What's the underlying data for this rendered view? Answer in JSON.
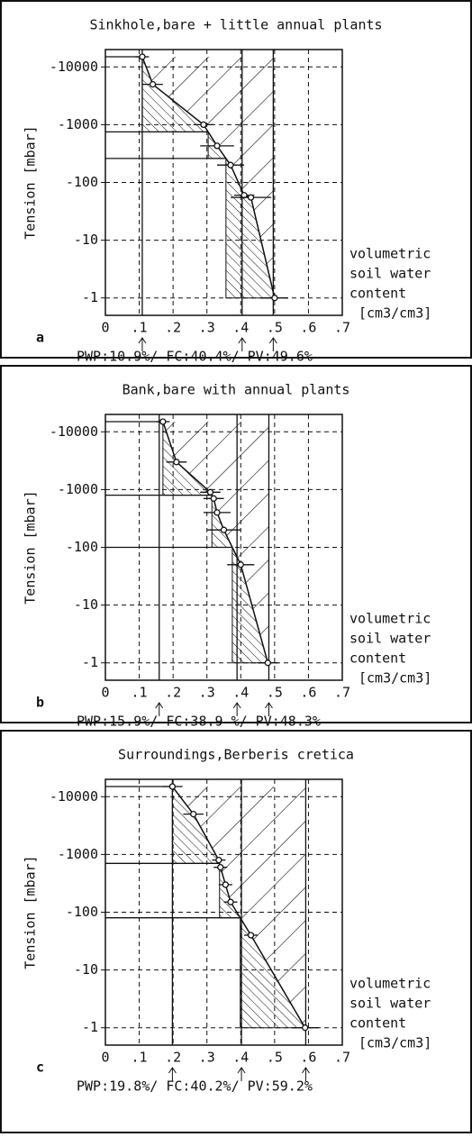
{
  "chart_data": [
    {
      "type": "scatter",
      "title": "Sinkhole,bare + little annual plants",
      "ylabel": "Tension [mbar]",
      "xlabel": [
        "volumetric",
        "soil water",
        "content",
        "[cm3/cm3]"
      ],
      "panel_label": "a",
      "annotation": "PWP:10.9%/ FC:40.4%/ PV:49.6%",
      "x": [
        0.109,
        0.14,
        0.29,
        0.33,
        0.37,
        0.41,
        0.43,
        0.5
      ],
      "values": [
        -15000,
        -5000,
        -1000,
        -430,
        -200,
        -60,
        -55,
        -1
      ],
      "xerr": [
        0.02,
        0.03,
        0.03,
        0.05,
        0.04,
        0.03,
        0.06,
        0.04
      ],
      "vlines": [
        0.109,
        0.404,
        0.496
      ],
      "hlines": [
        -15000,
        -750,
        -260
      ],
      "xlim": [
        0,
        0.7
      ],
      "xticks": [
        0,
        {
          "value": 0.1,
          "label": ".1"
        },
        {
          "value": 0.2,
          "label": ".2"
        },
        {
          "value": 0.3,
          "label": ".3"
        },
        {
          "value": 0.4,
          "label": ".4"
        },
        {
          "value": 0.5,
          "label": ".5"
        },
        {
          "value": 0.6,
          "label": ".6"
        },
        {
          "value": 0.7,
          "label": ".7"
        }
      ],
      "ylim": [
        -0.5,
        -20000
      ],
      "yticks": [
        -10000,
        -1000,
        -100,
        -10,
        -1
      ],
      "log_scale": true,
      "grid": true
    },
    {
      "type": "scatter",
      "title": "Bank,bare with annual plants",
      "ylabel": "Tension [mbar]",
      "xlabel": [
        "volumetric",
        "soil water",
        "content",
        "[cm3/cm3]"
      ],
      "panel_label": "b",
      "annotation": "PWP:15.9%/ FC:38.9 %/ PV:48.3%",
      "x": [
        0.17,
        0.21,
        0.31,
        0.32,
        0.33,
        0.35,
        0.4,
        0.48
      ],
      "values": [
        -15000,
        -3000,
        -900,
        -700,
        -400,
        -200,
        -50,
        -1
      ],
      "xerr": [
        0.02,
        0.03,
        0.03,
        0.03,
        0.04,
        0.05,
        0.04,
        0.03
      ],
      "vlines": [
        0.159,
        0.389,
        0.483
      ],
      "hlines": [
        -15000,
        -800,
        -100
      ],
      "xlim": [
        0,
        0.7
      ],
      "xticks": [
        0,
        {
          "value": 0.1,
          "label": ".1"
        },
        {
          "value": 0.2,
          "label": ".2"
        },
        {
          "value": 0.3,
          "label": ".3"
        },
        {
          "value": 0.4,
          "label": ".4"
        },
        {
          "value": 0.5,
          "label": ".5"
        },
        {
          "value": 0.6,
          "label": ".6"
        },
        {
          "value": 0.7,
          "label": ".7"
        }
      ],
      "ylim": [
        -0.5,
        -20000
      ],
      "yticks": [
        -10000,
        -1000,
        -100,
        -10,
        -1
      ],
      "log_scale": true,
      "grid": true
    },
    {
      "type": "scatter",
      "title": "Surroundings,Berberis cretica",
      "ylabel": "Tension [mbar]",
      "xlabel": [
        "volumetric",
        "soil water",
        "content",
        "[cm3/cm3]"
      ],
      "panel_label": "c",
      "annotation": "PWP:19.8%/ FC:40.2%/ PV:59.2%",
      "x": [
        0.198,
        0.26,
        0.335,
        0.34,
        0.355,
        0.37,
        0.43,
        0.59
      ],
      "values": [
        -15000,
        -5000,
        -800,
        -600,
        -300,
        -150,
        -40,
        -1
      ],
      "xerr": [
        0.03,
        0.03,
        0.02,
        0.02,
        0.02,
        0.02,
        0.02,
        0.04
      ],
      "vlines": [
        0.198,
        0.402,
        0.592
      ],
      "hlines": [
        -15000,
        -700,
        -80
      ],
      "xlim": [
        0,
        0.7
      ],
      "xticks": [
        0,
        {
          "value": 0.1,
          "label": ".1"
        },
        {
          "value": 0.2,
          "label": ".2"
        },
        {
          "value": 0.3,
          "label": ".3"
        },
        {
          "value": 0.4,
          "label": ".4"
        },
        {
          "value": 0.5,
          "label": ".5"
        },
        {
          "value": 0.6,
          "label": ".6"
        },
        {
          "value": 0.7,
          "label": ".7"
        }
      ],
      "ylim": [
        -0.5,
        -20000
      ],
      "yticks": [
        -10000,
        -1000,
        -100,
        -10,
        -1
      ],
      "log_scale": true,
      "grid": true
    }
  ]
}
